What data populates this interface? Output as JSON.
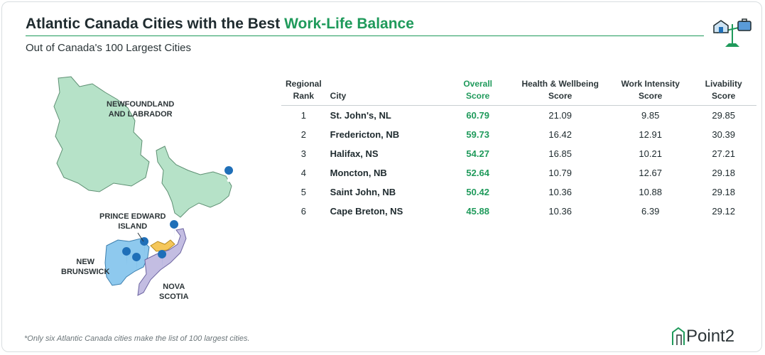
{
  "title": {
    "prefix": "Atlantic Canada Cities with the Best ",
    "highlight": "Work-Life Balance"
  },
  "subtitle": "Out of Canada's 100 Largest Cities",
  "colors": {
    "accent": "#1f9a5b",
    "nl": "#b6e2c8",
    "nb": "#8ec9ee",
    "ns": "#c3bde2",
    "pei": "#f5c75a",
    "pin": "#1f6fb8"
  },
  "map": {
    "labels": {
      "nl": "NEWFOUNDLAND\nAND LABRADOR",
      "pei": "PRINCE EDWARD\nISLAND",
      "nb": "NEW\nBRUNSWICK",
      "ns": "NOVA\nSCOTIA"
    }
  },
  "table": {
    "headers": {
      "rank": [
        "Regional",
        "Rank"
      ],
      "city": "City",
      "overall": [
        "Overall",
        "Score"
      ],
      "health": [
        "Health & Wellbeing",
        "Score"
      ],
      "work": [
        "Work Intensity",
        "Score"
      ],
      "livability": [
        "Livability",
        "Score"
      ]
    }
  },
  "chart_data": {
    "type": "table",
    "title": "Atlantic Canada Cities with the Best Work-Life Balance",
    "subtitle": "Out of Canada's 100 Largest Cities",
    "columns": [
      "Regional Rank",
      "City",
      "Overall Score",
      "Health & Wellbeing Score",
      "Work Intensity Score",
      "Livability Score"
    ],
    "rows": [
      {
        "rank": "1",
        "city": "St. John's, NL",
        "overall": "60.79",
        "health": "21.09",
        "work": "9.85",
        "livability": "29.85"
      },
      {
        "rank": "2",
        "city": "Fredericton, NB",
        "overall": "59.73",
        "health": "16.42",
        "work": "12.91",
        "livability": "30.39"
      },
      {
        "rank": "3",
        "city": "Halifax, NS",
        "overall": "54.27",
        "health": "16.85",
        "work": "10.21",
        "livability": "27.21"
      },
      {
        "rank": "4",
        "city": "Moncton, NB",
        "overall": "52.64",
        "health": "10.79",
        "work": "12.67",
        "livability": "29.18"
      },
      {
        "rank": "5",
        "city": "Saint John, NB",
        "overall": "50.42",
        "health": "10.36",
        "work": "10.88",
        "livability": "29.18"
      },
      {
        "rank": "6",
        "city": "Cape Breton, NS",
        "overall": "45.88",
        "health": "10.36",
        "work": "6.39",
        "livability": "29.12"
      }
    ]
  },
  "footnote": "*Only six Atlantic Canada cities make the list of 100 largest cities.",
  "brand": "Point2"
}
